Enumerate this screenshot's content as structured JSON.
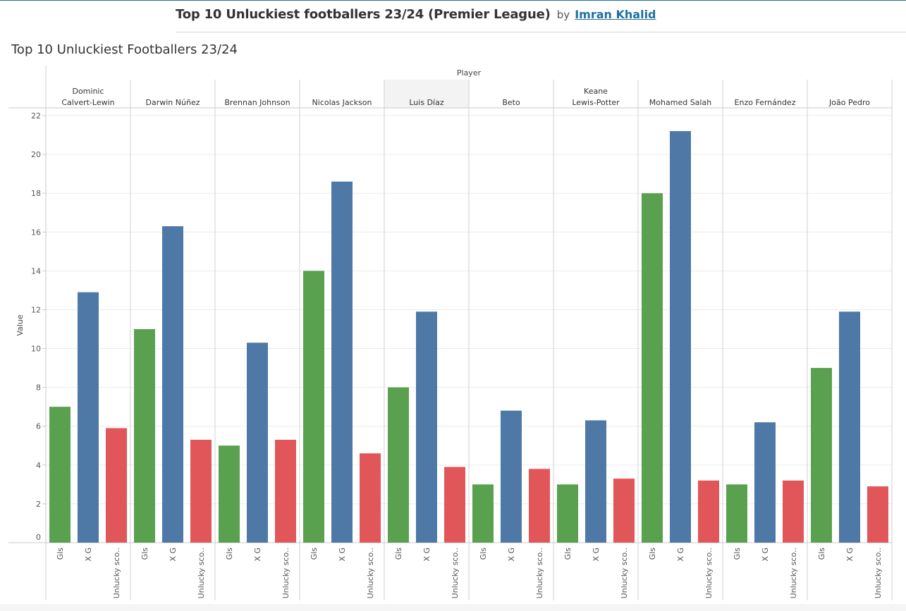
{
  "viz": {
    "title": "Top 10 Unluckiest footballers 23/24 (Premier League)",
    "by": "by",
    "author": "Imran Khalid"
  },
  "sheet_title": "Top 10 Unluckiest Footballers 23/24",
  "chart_data": {
    "type": "bar",
    "column_header": "Player",
    "ylabel": "Value",
    "ylim": [
      0,
      22
    ],
    "yticks": [
      0,
      2,
      4,
      6,
      8,
      10,
      12,
      14,
      16,
      18,
      20,
      22
    ],
    "grid": true,
    "highlighted_category": "Luis Díaz",
    "categories": [
      "Dominic Calvert-Lewin",
      "Darwin Núñez",
      "Brennan Johnson",
      "Nicolas Jackson",
      "Luis Díaz",
      "Beto",
      "Keane Lewis-Potter",
      "Mohamed Salah",
      "Enzo Fernández",
      "João Pedro"
    ],
    "measure_labels": [
      "Gls",
      "X G",
      "Unlucky sco.."
    ],
    "colors": [
      "#59a14f",
      "#4e79a7",
      "#e15759"
    ],
    "series": [
      {
        "values": [
          7,
          11,
          5,
          14,
          8,
          3,
          3,
          18,
          3,
          9
        ]
      },
      {
        "values": [
          12.9,
          16.3,
          10.3,
          18.6,
          11.9,
          6.8,
          6.3,
          21.2,
          6.2,
          11.9
        ]
      },
      {
        "values": [
          5.9,
          5.3,
          5.3,
          4.6,
          3.9,
          3.8,
          3.3,
          3.2,
          3.2,
          2.9
        ]
      }
    ]
  }
}
